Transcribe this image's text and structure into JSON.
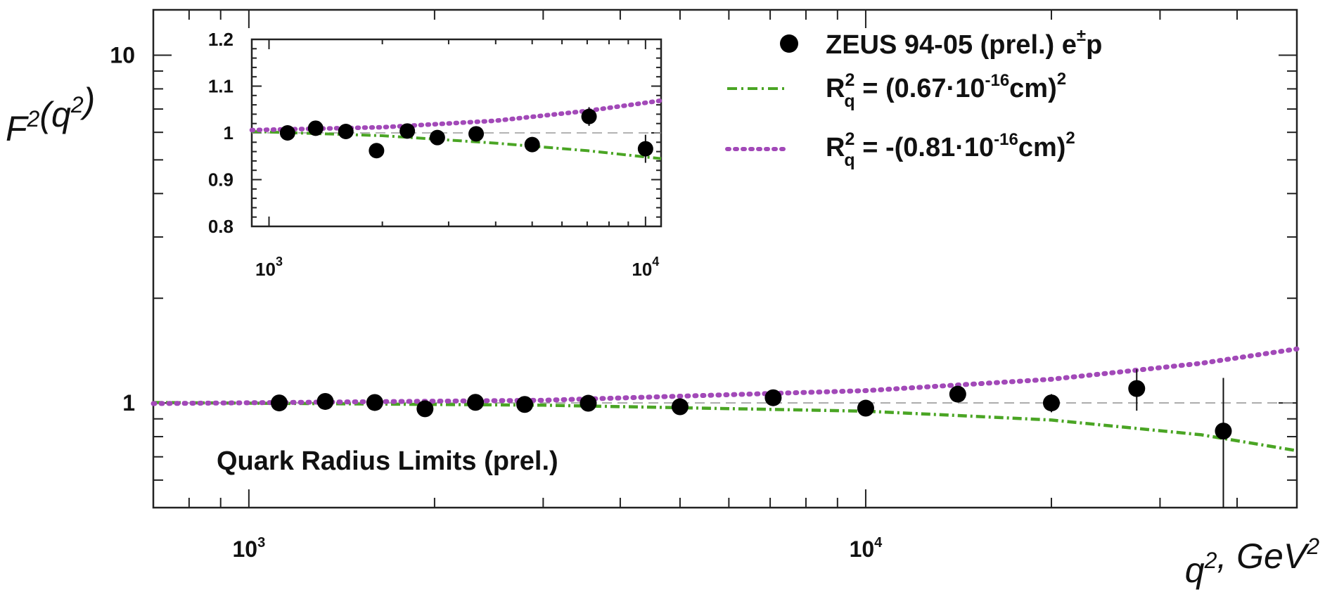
{
  "chart_data": [
    {
      "type": "scatter",
      "xscale": "log",
      "yscale": "log",
      "xlim": [
        700,
        50000
      ],
      "ylim": [
        0.5,
        13.5
      ],
      "xlabel": "q², GeV²",
      "ylabel": "F²(q²)",
      "x_ticks": [
        {
          "value": 1000,
          "mantissa": "10",
          "exp": "3"
        },
        {
          "value": 10000,
          "mantissa": "10",
          "exp": "4"
        }
      ],
      "y_ticks": [
        {
          "value": 1,
          "label": "1"
        },
        {
          "value": 10,
          "label": "10"
        }
      ],
      "annotation": "Quark Radius Limits (prel.)",
      "reference_line": 1,
      "series": [
        {
          "name": "ZEUS 94-05 (prel.) e±p",
          "legend": {
            "main": "ZEUS 94-05 (prel.) e",
            "sup": "±",
            "tail": "p"
          },
          "style": "points",
          "color": "#000000",
          "points": [
            {
              "x": 1120,
              "y": 1.0,
              "err": 0.01
            },
            {
              "x": 1330,
              "y": 1.01,
              "err": 0.01
            },
            {
              "x": 1600,
              "y": 1.003,
              "err": 0.01
            },
            {
              "x": 1930,
              "y": 0.962,
              "err": 0.012
            },
            {
              "x": 2330,
              "y": 1.004,
              "err": 0.012
            },
            {
              "x": 2800,
              "y": 0.99,
              "err": 0.012
            },
            {
              "x": 3550,
              "y": 0.998,
              "err": 0.015
            },
            {
              "x": 5000,
              "y": 0.975,
              "err": 0.02
            },
            {
              "x": 7080,
              "y": 1.035,
              "err": 0.025
            },
            {
              "x": 10000,
              "y": 0.966,
              "err": 0.02
            },
            {
              "x": 14100,
              "y": 1.06,
              "err": 0.03
            },
            {
              "x": 20000,
              "y": 1.0,
              "err": 0.06
            },
            {
              "x": 27500,
              "y": 1.1,
              "err": 0.15
            },
            {
              "x": 38000,
              "y": 0.83,
              "err": 0.35
            }
          ]
        },
        {
          "name": "R_q² = (0.67·10⁻¹⁶cm)²",
          "legend": {
            "pre": "R",
            "sup": "2",
            "sub": "q",
            "mid": " = (0.67·10",
            "sup2": "-16",
            "tail": "cm)",
            "sup3": "2"
          },
          "style": "dashdot",
          "color": "#4aa524",
          "curve": [
            [
              700,
              1.003
            ],
            [
              3000,
              0.985
            ],
            [
              10000,
              0.947
            ],
            [
              20000,
              0.893
            ],
            [
              35000,
              0.81
            ],
            [
              50000,
              0.729
            ]
          ]
        },
        {
          "name": "R_q² = -(0.81·10⁻¹⁶cm)²",
          "legend": {
            "pre": "R",
            "sup": "2",
            "sub": "q",
            "mid": " = -(0.81·10",
            "sup2": "-16",
            "tail": "cm)",
            "sup3": "2"
          },
          "style": "dotted",
          "color": "#a249b8",
          "curve": [
            [
              700,
              0.996
            ],
            [
              3000,
              1.018
            ],
            [
              10000,
              1.085
            ],
            [
              20000,
              1.17
            ],
            [
              35000,
              1.3
            ],
            [
              50000,
              1.43
            ]
          ]
        }
      ]
    },
    {
      "type": "scatter",
      "panel": "inset",
      "xscale": "log",
      "xlim": [
        900,
        11000
      ],
      "ylim": [
        0.8,
        1.2
      ],
      "x_ticks": [
        {
          "value": 1000,
          "mantissa": "10",
          "exp": "3"
        },
        {
          "value": 10000,
          "mantissa": "10",
          "exp": "4"
        }
      ],
      "y_ticks": [
        {
          "value": 0.8,
          "label": "0.8"
        },
        {
          "value": 0.9,
          "label": "0.9"
        },
        {
          "value": 1.0,
          "label": "1"
        },
        {
          "value": 1.1,
          "label": "1.1"
        },
        {
          "value": 1.2,
          "label": "1.2"
        }
      ],
      "reference_line": 1,
      "series": [
        {
          "name": "ZEUS 94-05 (prel.) e±p",
          "style": "points",
          "color": "#000000",
          "points": [
            {
              "x": 1120,
              "y": 1.0,
              "err": 0.006
            },
            {
              "x": 1330,
              "y": 1.01,
              "err": 0.006
            },
            {
              "x": 1600,
              "y": 1.003,
              "err": 0.006
            },
            {
              "x": 1930,
              "y": 0.962,
              "err": 0.006
            },
            {
              "x": 2330,
              "y": 1.004,
              "err": 0.006
            },
            {
              "x": 2800,
              "y": 0.99,
              "err": 0.006
            },
            {
              "x": 3550,
              "y": 0.998,
              "err": 0.008
            },
            {
              "x": 5000,
              "y": 0.975,
              "err": 0.01
            },
            {
              "x": 7080,
              "y": 1.035,
              "err": 0.02
            },
            {
              "x": 10000,
              "y": 0.966,
              "err": 0.03
            }
          ]
        },
        {
          "name": "R_q² = (0.67·10⁻¹⁶cm)²",
          "style": "dashdot",
          "color": "#4aa524",
          "curve": [
            [
              900,
              1.003
            ],
            [
              2000,
              0.994
            ],
            [
              4000,
              0.978
            ],
            [
              7000,
              0.962
            ],
            [
              11000,
              0.945
            ]
          ]
        },
        {
          "name": "R_q² = -(0.81·10⁻¹⁶cm)²",
          "style": "dotted",
          "color": "#a249b8",
          "curve": [
            [
              900,
              1.006
            ],
            [
              2000,
              1.012
            ],
            [
              4000,
              1.026
            ],
            [
              7000,
              1.047
            ],
            [
              11000,
              1.069
            ]
          ]
        }
      ]
    }
  ]
}
